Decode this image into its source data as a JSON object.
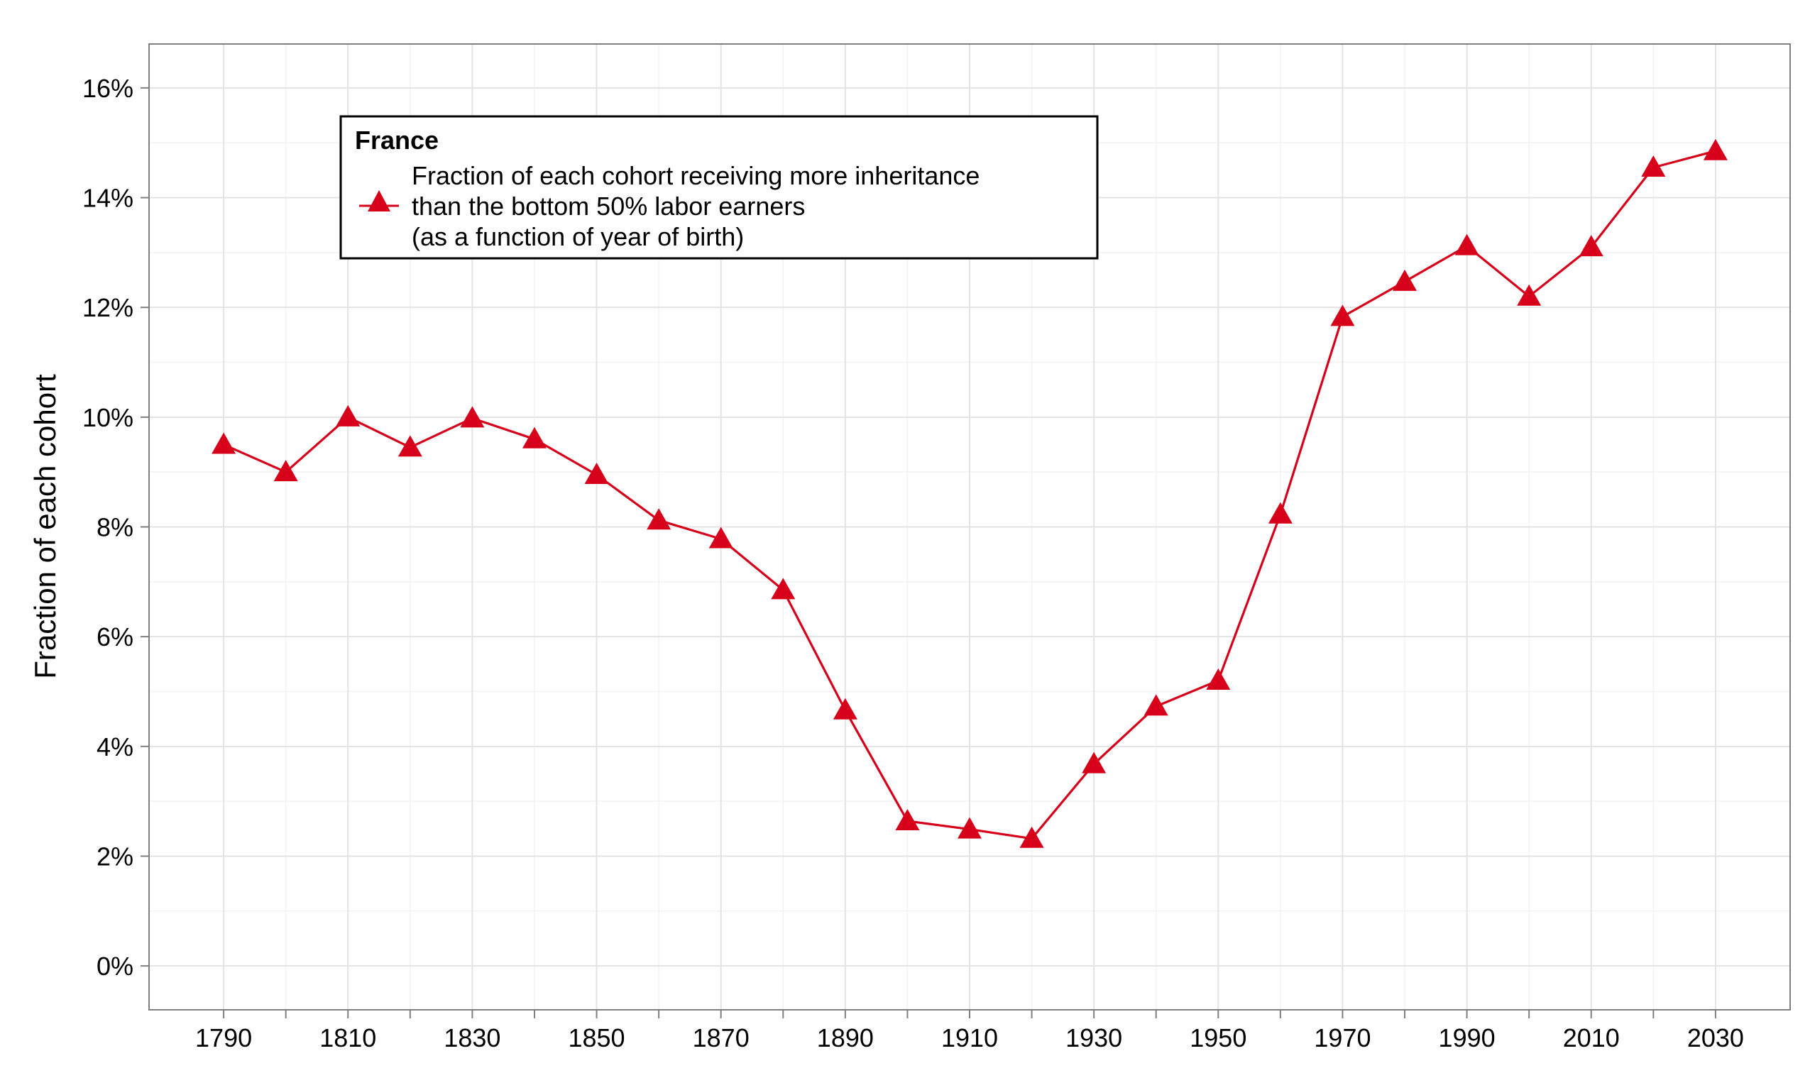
{
  "chart_data": {
    "type": "line",
    "title": "",
    "xlabel": "",
    "ylabel": "Fraction of each cohort",
    "x": [
      1790,
      1800,
      1810,
      1820,
      1830,
      1840,
      1850,
      1860,
      1870,
      1880,
      1890,
      1900,
      1910,
      1920,
      1930,
      1940,
      1950,
      1960,
      1970,
      1980,
      1990,
      2000,
      2010,
      2020,
      2030
    ],
    "series": [
      {
        "name": "Fraction of each cohort receiving more inheritance than the bottom 50% labor earners (as a function of year of birth)",
        "color": "#d7001a",
        "marker": "triangle",
        "values": [
          9.5,
          9.0,
          10.0,
          9.45,
          9.98,
          9.6,
          8.95,
          8.12,
          7.78,
          6.85,
          4.66,
          2.64,
          2.49,
          2.32,
          3.68,
          4.73,
          5.2,
          8.23,
          11.83,
          12.47,
          13.12,
          12.2,
          13.1,
          14.55,
          14.85
        ]
      }
    ],
    "xlim": [
      1778,
      2042
    ],
    "ylim": [
      -0.8,
      16.8
    ],
    "xticks": [
      "1790",
      "1810",
      "1830",
      "1850",
      "1870",
      "1890",
      "1910",
      "1930",
      "1950",
      "1970",
      "1990",
      "2010",
      "2030"
    ],
    "yticks": [
      "0%",
      "2%",
      "4%",
      "6%",
      "8%",
      "10%",
      "12%",
      "14%",
      "16%"
    ],
    "grid": true,
    "legend": {
      "title": "France",
      "lines": [
        "Fraction of each cohort receiving more inheritance",
        "than the bottom 50% labor earners",
        "(as a function of year of birth)"
      ],
      "position": "top-left"
    }
  }
}
